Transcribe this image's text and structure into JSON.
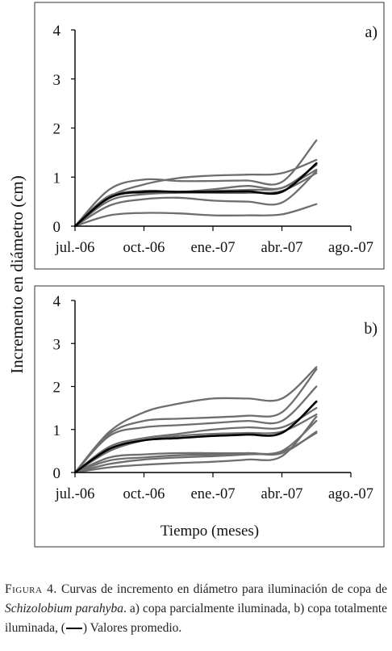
{
  "ylabel": "Incremento en diámetro (cm)",
  "xlabel": "Tiempo (meses)",
  "chart_data": [
    {
      "type": "line",
      "panel_label": "a)",
      "x_ticks": [
        "jul.-06",
        "oct.-06",
        "ene.-07",
        "abr.-07",
        "ago.-07"
      ],
      "x_tick_values": [
        0,
        3,
        6,
        9,
        12
      ],
      "y_ticks": [
        "0",
        "1",
        "2",
        "3",
        "4"
      ],
      "ylim": [
        0,
        4
      ],
      "xlim": [
        0,
        12
      ],
      "grid": false,
      "average_color": "#000000",
      "tree_color": "#6e6e6e",
      "series": [
        {
          "values": [
            [
              0,
              0
            ],
            [
              1.5,
              0.75
            ],
            [
              3,
              0.95
            ],
            [
              4.5,
              0.92
            ],
            [
              6,
              0.92
            ],
            [
              7.5,
              0.93
            ],
            [
              9,
              0.9
            ],
            [
              10.5,
              1.75
            ]
          ]
        },
        {
          "values": [
            [
              0,
              0
            ],
            [
              1.5,
              0.6
            ],
            [
              3,
              0.85
            ],
            [
              4.5,
              0.98
            ],
            [
              6,
              1.03
            ],
            [
              7.5,
              1.05
            ],
            [
              9,
              1.08
            ],
            [
              10.5,
              1.35
            ]
          ]
        },
        {
          "values": [
            [
              0,
              0
            ],
            [
              1.5,
              0.6
            ],
            [
              3,
              0.72
            ],
            [
              4.5,
              0.7
            ],
            [
              6,
              0.75
            ],
            [
              7.5,
              0.82
            ],
            [
              9,
              0.78
            ],
            [
              10.5,
              1.25
            ]
          ]
        },
        {
          "values": [
            [
              0,
              0
            ],
            [
              1.5,
              0.62
            ],
            [
              3,
              0.68
            ],
            [
              4.5,
              0.7
            ],
            [
              6,
              0.72
            ],
            [
              7.5,
              0.74
            ],
            [
              9,
              0.78
            ],
            [
              10.5,
              1.15
            ]
          ]
        },
        {
          "values": [
            [
              0,
              0
            ],
            [
              1.5,
              0.52
            ],
            [
              3,
              0.65
            ],
            [
              4.5,
              0.68
            ],
            [
              6,
              0.68
            ],
            [
              7.5,
              0.68
            ],
            [
              9,
              0.72
            ],
            [
              10.5,
              1.08
            ]
          ]
        },
        {
          "values": [
            [
              0,
              0
            ],
            [
              1.5,
              0.42
            ],
            [
              3,
              0.55
            ],
            [
              4.5,
              0.58
            ],
            [
              6,
              0.52
            ],
            [
              7.5,
              0.5
            ],
            [
              9,
              0.48
            ],
            [
              10.5,
              1.12
            ]
          ]
        },
        {
          "values": [
            [
              0,
              0
            ],
            [
              1.5,
              0.22
            ],
            [
              3,
              0.27
            ],
            [
              4.5,
              0.26
            ],
            [
              6,
              0.22
            ],
            [
              7.5,
              0.22
            ],
            [
              9,
              0.24
            ],
            [
              10.5,
              0.45
            ]
          ]
        },
        {
          "average": true,
          "values": [
            [
              0,
              0
            ],
            [
              1.5,
              0.58
            ],
            [
              3,
              0.7
            ],
            [
              4.5,
              0.7
            ],
            [
              6,
              0.7
            ],
            [
              7.5,
              0.71
            ],
            [
              9,
              0.7
            ],
            [
              10.5,
              1.28
            ]
          ]
        }
      ]
    },
    {
      "type": "line",
      "panel_label": "b)",
      "x_ticks": [
        "jul.-06",
        "oct.-06",
        "ene.-07",
        "abr.-07",
        "ago.-07"
      ],
      "x_tick_values": [
        0,
        3,
        6,
        9,
        12
      ],
      "y_ticks": [
        "0",
        "1",
        "2",
        "3",
        "4"
      ],
      "ylim": [
        0,
        4
      ],
      "xlim": [
        0,
        12
      ],
      "grid": false,
      "average_color": "#000000",
      "tree_color": "#6e6e6e",
      "series": [
        {
          "values": [
            [
              0,
              0
            ],
            [
              1.5,
              0.95
            ],
            [
              3,
              1.4
            ],
            [
              4.5,
              1.6
            ],
            [
              6,
              1.72
            ],
            [
              7.5,
              1.72
            ],
            [
              9,
              1.72
            ],
            [
              10.5,
              2.45
            ]
          ]
        },
        {
          "values": [
            [
              0,
              0
            ],
            [
              1.5,
              0.9
            ],
            [
              3,
              1.2
            ],
            [
              4.5,
              1.25
            ],
            [
              6,
              1.28
            ],
            [
              7.5,
              1.32
            ],
            [
              9,
              1.4
            ],
            [
              10.5,
              2.4
            ]
          ]
        },
        {
          "values": [
            [
              0,
              0
            ],
            [
              1.5,
              0.85
            ],
            [
              3,
              1.05
            ],
            [
              4.5,
              1.1
            ],
            [
              6,
              1.15
            ],
            [
              7.5,
              1.2
            ],
            [
              9,
              1.2
            ],
            [
              10.5,
              2.0
            ]
          ]
        },
        {
          "values": [
            [
              0,
              0
            ],
            [
              1.5,
              0.6
            ],
            [
              3,
              0.8
            ],
            [
              4.5,
              0.9
            ],
            [
              6,
              1.0
            ],
            [
              7.5,
              1.05
            ],
            [
              9,
              1.05
            ],
            [
              10.5,
              1.5
            ]
          ]
        },
        {
          "values": [
            [
              0,
              0
            ],
            [
              1.5,
              0.5
            ],
            [
              3,
              0.75
            ],
            [
              4.5,
              0.85
            ],
            [
              6,
              0.9
            ],
            [
              7.5,
              0.92
            ],
            [
              9,
              0.95
            ],
            [
              10.5,
              1.35
            ]
          ]
        },
        {
          "values": [
            [
              0,
              0
            ],
            [
              1.5,
              0.35
            ],
            [
              3,
              0.42
            ],
            [
              4.5,
              0.45
            ],
            [
              6,
              0.45
            ],
            [
              7.5,
              0.45
            ],
            [
              9,
              0.5
            ],
            [
              10.5,
              1.2
            ]
          ]
        },
        {
          "values": [
            [
              0,
              0
            ],
            [
              1.5,
              0.28
            ],
            [
              3,
              0.35
            ],
            [
              4.5,
              0.4
            ],
            [
              6,
              0.42
            ],
            [
              7.5,
              0.45
            ],
            [
              9,
              0.45
            ],
            [
              10.5,
              0.95
            ]
          ]
        },
        {
          "values": [
            [
              0,
              0
            ],
            [
              1.5,
              0.2
            ],
            [
              3,
              0.3
            ],
            [
              4.5,
              0.35
            ],
            [
              6,
              0.38
            ],
            [
              7.5,
              0.42
            ],
            [
              9,
              0.48
            ],
            [
              10.5,
              0.92
            ]
          ]
        },
        {
          "values": [
            [
              0,
              0
            ],
            [
              1.5,
              0.12
            ],
            [
              3,
              0.18
            ],
            [
              4.5,
              0.22
            ],
            [
              6,
              0.25
            ],
            [
              7.5,
              0.3
            ],
            [
              9,
              0.38
            ],
            [
              10.5,
              1.3
            ]
          ]
        },
        {
          "average": true,
          "values": [
            [
              0,
              0
            ],
            [
              1.5,
              0.55
            ],
            [
              3,
              0.75
            ],
            [
              4.5,
              0.8
            ],
            [
              6,
              0.85
            ],
            [
              7.5,
              0.88
            ],
            [
              9,
              0.92
            ],
            [
              10.5,
              1.65
            ]
          ]
        }
      ]
    }
  ],
  "caption": {
    "fig": "Figura 4.",
    "text1": "Curvas de incremento en diámetro para iluminación de copa de",
    "species": "Schizolobium parahyba",
    "text2": ". a) copa parcialmente iluminada, b) copa totalmente iluminada, (",
    "text3": ") Valores promedio."
  }
}
